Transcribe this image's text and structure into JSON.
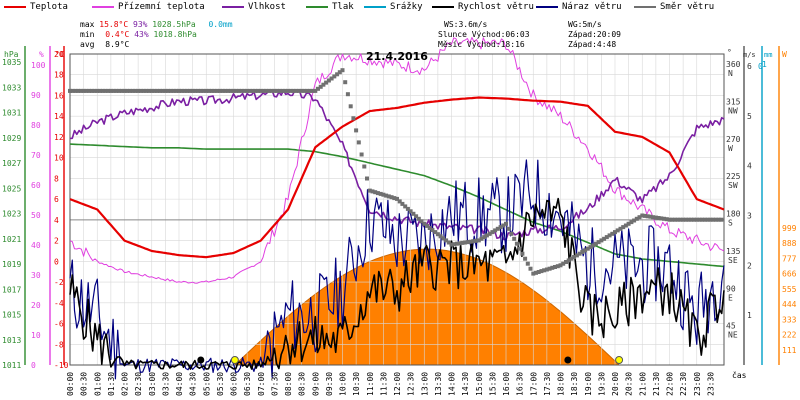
{
  "legend": [
    {
      "label": "Teplota",
      "color": "#e60000"
    },
    {
      "label": "Přízemní teplota",
      "color": "#e040e0"
    },
    {
      "label": "Vlhkost",
      "color": "#7a1fa2"
    },
    {
      "label": "Tlak",
      "color": "#2e8b2e"
    },
    {
      "label": "Srážky",
      "color": "#00a0c8"
    },
    {
      "label": "Rychlost větru",
      "color": "#000000"
    },
    {
      "label": "Náraz větru",
      "color": "#000080"
    },
    {
      "label": "Směr větru",
      "color": "#707070"
    }
  ],
  "stats": {
    "max_label": "max",
    "max_temp": "15.8°C",
    "max_hum": "93%",
    "max_press": "1028.5hPa",
    "max_rain": "0.0mm",
    "min_label": "min",
    "min_temp": "0.4°C",
    "min_hum": "43%",
    "min_press": "1018.8hPa",
    "avg_label": "avg",
    "avg_temp": "8.9°C",
    "ws": "WS:3.6m/s",
    "wg": "WG:5m/s",
    "sun_rise": "Slunce Východ:06:03",
    "sun_set": "Západ:20:09",
    "moon_rise": "Měsíc  Východ:18:16",
    "moon_set": "Západ:4:48"
  },
  "date_title": "21.4.2016",
  "axis_headers": {
    "hpa": "hPa",
    "pct": "%",
    "degc": "°C",
    "deg": "°",
    "ms": "m/s",
    "mm": "mm",
    "wm2": "W"
  },
  "x_axis_title": "čas",
  "chart_data": {
    "type": "line",
    "title": "21.4.2016",
    "x_ticks": [
      "00:00",
      "00:30",
      "01:00",
      "01:30",
      "02:00",
      "02:30",
      "03:00",
      "03:30",
      "04:00",
      "04:30",
      "05:00",
      "05:30",
      "06:00",
      "06:30",
      "07:00",
      "07:30",
      "08:00",
      "08:30",
      "09:00",
      "09:30",
      "10:00",
      "10:30",
      "11:00",
      "11:30",
      "12:00",
      "12:30",
      "13:00",
      "13:30",
      "14:00",
      "14:30",
      "15:00",
      "15:30",
      "16:00",
      "16:30",
      "17:00",
      "17:30",
      "18:00",
      "18:30",
      "19:00",
      "19:30",
      "20:00",
      "20:30",
      "21:00",
      "21:30",
      "22:00",
      "22:30",
      "23:00",
      "23:30"
    ],
    "y_axes": {
      "pressure_hpa": [
        "1035",
        "1033",
        "1031",
        "1029",
        "1027",
        "1025",
        "1023",
        "1021",
        "1019",
        "1017",
        "1015",
        "1013",
        "1011"
      ],
      "humidity_pct": [
        "100",
        "90",
        "80",
        "70",
        "60",
        "50",
        "40",
        "30",
        "20",
        "10",
        "0"
      ],
      "temp_c": [
        "20",
        "18",
        "16",
        "14",
        "12",
        "10",
        "8",
        "6",
        "4",
        "2",
        "0",
        "-2",
        "-4",
        "-6",
        "-8",
        "-10"
      ],
      "wind_dir": [
        "360",
        "315",
        "270",
        "225",
        "180",
        "135",
        "90",
        "45"
      ],
      "wind_dir_letters": [
        "N",
        "NW",
        "W",
        "SW",
        "S",
        "SE",
        "E",
        "NE"
      ],
      "wind_ms": [
        "1",
        "2",
        "3",
        "4",
        "5",
        "6"
      ],
      "rain_mm": [
        "0",
        "1"
      ],
      "radiation_w": [
        "999",
        "888",
        "777",
        "666",
        "555",
        "444",
        "333",
        "222",
        "111"
      ]
    },
    "series": [
      {
        "name": "Teplota",
        "color": "#e60000",
        "unit": "°C",
        "hours": [
          0,
          1,
          2,
          3,
          4,
          5,
          6,
          7,
          8,
          9,
          10,
          11,
          12,
          13,
          14,
          15,
          16,
          17,
          18,
          19,
          20,
          21,
          22,
          23,
          24
        ],
        "values": [
          6,
          5,
          2,
          1,
          0.6,
          0.4,
          0.8,
          2,
          5,
          11,
          13,
          14.5,
          14.8,
          15.3,
          15.6,
          15.8,
          15.7,
          15.5,
          15.4,
          15,
          12.5,
          12,
          10.5,
          6,
          5
        ]
      },
      {
        "name": "Přízemní teplota",
        "color": "#e040e0",
        "unit": "°C",
        "hours": [
          0,
          1,
          2,
          3,
          4,
          5,
          6,
          7,
          8,
          9,
          10,
          11,
          12,
          13,
          14,
          15,
          16,
          17,
          18,
          19,
          20,
          21,
          22,
          23,
          24
        ],
        "values": [
          2,
          0,
          -1,
          -1.5,
          -2,
          -2,
          -1.5,
          0,
          6,
          17,
          20,
          19.5,
          19,
          18.5,
          21,
          21,
          21,
          16,
          14,
          11,
          7,
          5,
          3,
          2,
          1
        ]
      },
      {
        "name": "Vlhkost",
        "color": "#7a1fa2",
        "unit": "%",
        "hours": [
          0,
          1,
          2,
          3,
          4,
          5,
          6,
          7,
          8,
          9,
          10,
          11,
          12,
          13,
          14,
          15,
          16,
          17,
          18,
          19,
          20,
          21,
          22,
          23,
          24
        ],
        "values": [
          76,
          81,
          84,
          86,
          88,
          88,
          89,
          90,
          91,
          89,
          73,
          52,
          49,
          47,
          46,
          45,
          43,
          45,
          46,
          52,
          62,
          55,
          63,
          79,
          82
        ]
      },
      {
        "name": "Tlak",
        "color": "#2e8b2e",
        "unit": "hPa",
        "hours": [
          0,
          1,
          2,
          3,
          4,
          5,
          6,
          7,
          8,
          9,
          10,
          11,
          12,
          13,
          14,
          15,
          16,
          17,
          18,
          19,
          20,
          21,
          22,
          23,
          24
        ],
        "values": [
          1028.5,
          1028.4,
          1028.3,
          1028.2,
          1028.2,
          1028.1,
          1028.1,
          1028.1,
          1028.1,
          1027.9,
          1027.5,
          1027.0,
          1026.5,
          1026.0,
          1025.2,
          1024.3,
          1023.3,
          1022.3,
          1021.6,
          1020.7,
          1019.8,
          1019.4,
          1019.2,
          1019.0,
          1018.8
        ]
      },
      {
        "name": "Rychlost větru",
        "color": "#000000",
        "unit": "m/s",
        "hours": [
          0,
          1,
          2,
          3,
          4,
          5,
          6,
          7,
          8,
          9,
          10,
          11,
          12,
          13,
          14,
          15,
          16,
          17,
          18,
          19,
          20,
          21,
          22,
          23,
          24
        ],
        "values": [
          1.5,
          0.5,
          0,
          0,
          0,
          0,
          0,
          0,
          0.5,
          0.5,
          0.5,
          1.5,
          1.5,
          2,
          2,
          2,
          2,
          3,
          3,
          1,
          1,
          1.5,
          1.5,
          0.5,
          1.5
        ]
      },
      {
        "name": "Náraz větru",
        "color": "#000080",
        "unit": "m/s",
        "hours": [
          0,
          1,
          2,
          3,
          4,
          5,
          6,
          7,
          8,
          9,
          10,
          11,
          12,
          13,
          14,
          15,
          16,
          17,
          18,
          19,
          20,
          21,
          22,
          23,
          24
        ],
        "values": [
          1.5,
          1,
          0,
          0,
          0,
          0,
          0,
          0,
          1,
          1,
          1.5,
          3,
          2.5,
          2.5,
          3,
          3,
          3,
          3.5,
          3,
          2,
          2,
          2,
          2,
          1,
          2
        ]
      },
      {
        "name": "Směr větru",
        "color": "#707070",
        "unit": "°",
        "hours": [
          0,
          1,
          2,
          3,
          4,
          5,
          6,
          7,
          8,
          9,
          10,
          11,
          12,
          13,
          14,
          15,
          16,
          17,
          18,
          19,
          20,
          21,
          22,
          23,
          24
        ],
        "values": [
          330,
          330,
          330,
          330,
          330,
          330,
          330,
          330,
          330,
          330,
          355,
          210,
          200,
          170,
          145,
          150,
          170,
          110,
          120,
          140,
          160,
          180,
          175,
          175,
          175
        ]
      },
      {
        "name": "Sluneční záření",
        "color": "#ff8000",
        "unit": "W",
        "hours": [
          6,
          8,
          10,
          12,
          14,
          16,
          18,
          20
        ],
        "values": [
          0,
          300,
          650,
          830,
          840,
          690,
          320,
          0
        ]
      }
    ],
    "events": {
      "sunrise": "06:03",
      "sunset": "20:09",
      "moonrise": "18:16",
      "moonset": "4:48"
    }
  }
}
